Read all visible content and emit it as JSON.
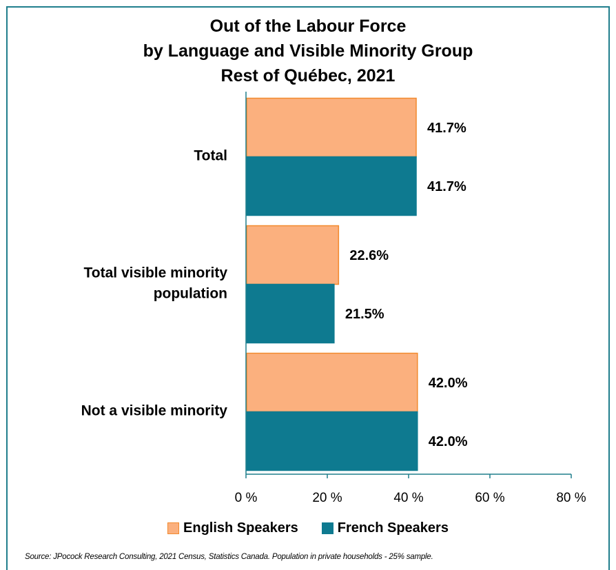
{
  "chart_data": {
    "type": "bar",
    "orientation": "horizontal",
    "title": "Out of the Labour Force by Language and Visible Minority Group Rest of Québec, 2021",
    "title_lines": [
      "Out of the Labour Force",
      "by Language and Visible Minority Group",
      "Rest of Québec, 2021"
    ],
    "categories": [
      "Total",
      "Total visible minority population",
      "Not a visible minority"
    ],
    "category_lines": [
      [
        "Total"
      ],
      [
        "Total visible minority",
        "population"
      ],
      [
        "Not a visible minority"
      ]
    ],
    "series": [
      {
        "name": "English Speakers",
        "values": [
          41.7,
          22.6,
          42.0
        ],
        "labels": [
          "41.7%",
          "22.6%",
          "42.0%"
        ],
        "color": "#fbb07e",
        "stroke": "#f28a2e"
      },
      {
        "name": "French Speakers",
        "values": [
          41.7,
          21.5,
          42.0
        ],
        "labels": [
          "41.7%",
          "21.5%",
          "42.0%"
        ],
        "color": "#0e7a90",
        "stroke": "#0e7a90"
      }
    ],
    "xlim": [
      0,
      80
    ],
    "xticks": [
      0,
      20,
      40,
      60,
      80
    ],
    "xtick_labels": [
      "0 %",
      "20 %",
      "40 %",
      "60 %",
      "80 %"
    ],
    "xlabel": "",
    "ylabel": "",
    "grid": false,
    "legend_position": "bottom",
    "axis_color": "#1f7e8c"
  },
  "source": "Source: JPocock Research Consulting, 2021 Census, Statistics Canada. Population in private households - 25% sample."
}
